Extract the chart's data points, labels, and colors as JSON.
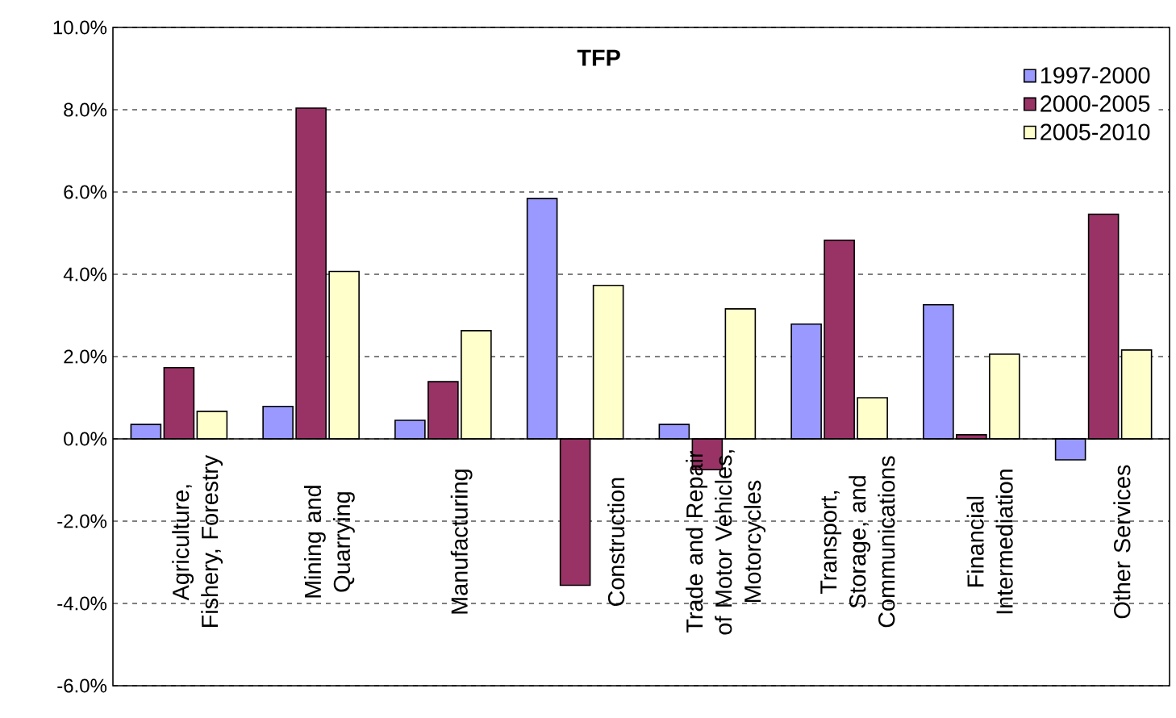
{
  "chart_data": {
    "type": "bar",
    "title": "TFP",
    "categories": [
      "Agriculture, Fishery, Forestry",
      "Mining and Quarrying",
      "Manufacturing",
      "Construction",
      "Trade and Repair of Motor Vehicles, Motorcycles",
      "Transport, Storage, and Communications",
      "Financial Intermediation",
      "Other Services"
    ],
    "series": [
      {
        "name": "1997-2000",
        "color": "#9999ff",
        "values": [
          0.35,
          0.79,
          0.45,
          5.84,
          0.35,
          2.79,
          3.26,
          -0.51
        ]
      },
      {
        "name": "2000-2005",
        "color": "#993366",
        "values": [
          1.73,
          8.04,
          1.39,
          -3.56,
          -0.75,
          4.83,
          0.1,
          5.46
        ]
      },
      {
        "name": "2005-2010",
        "color": "#ffffcc",
        "values": [
          0.67,
          4.07,
          2.63,
          3.73,
          3.16,
          1.0,
          2.06,
          2.16
        ]
      }
    ],
    "ylim": [
      -6,
      10
    ],
    "yticks": [
      {
        "value": -6,
        "label": "-6.0%"
      },
      {
        "value": -4,
        "label": "-4.0%"
      },
      {
        "value": -2,
        "label": "-2.0%"
      },
      {
        "value": 0,
        "label": "0.0%"
      },
      {
        "value": 2,
        "label": "2.0%"
      },
      {
        "value": 4,
        "label": "4.0%"
      },
      {
        "value": 6,
        "label": "6.0%"
      },
      {
        "value": 8,
        "label": "8.0%"
      },
      {
        "value": 10,
        "label": "10.0%"
      }
    ],
    "grid": "y",
    "legend": "top right"
  }
}
